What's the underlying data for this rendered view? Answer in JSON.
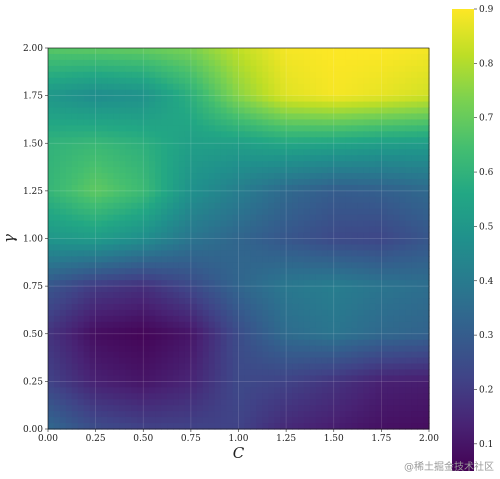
{
  "chart_data": {
    "type": "heatmap",
    "title": "",
    "xlabel": "C",
    "ylabel": "γ",
    "xlim": [
      0.0,
      2.0
    ],
    "ylim": [
      0.0,
      2.0
    ],
    "x_ticks": [
      "0.00",
      "0.25",
      "0.50",
      "0.75",
      "1.00",
      "1.25",
      "1.50",
      "1.75",
      "2.00"
    ],
    "y_ticks": [
      "0.00",
      "0.25",
      "0.50",
      "0.75",
      "1.00",
      "1.25",
      "1.50",
      "1.75",
      "2.00"
    ],
    "colorbar": {
      "colormap": "viridis",
      "range": [
        0.05,
        0.9
      ],
      "ticks": [
        "0.1",
        "0.2",
        "0.3",
        "0.4",
        "0.5",
        "0.6",
        "0.7",
        "0.8",
        "0.9"
      ]
    },
    "x": [
      0.0,
      0.25,
      0.5,
      0.75,
      1.0,
      1.25,
      1.5,
      1.75,
      2.0
    ],
    "y": [
      0.0,
      0.25,
      0.5,
      0.75,
      1.0,
      1.25,
      1.5,
      1.75,
      2.0
    ],
    "z": [
      [
        0.34,
        0.25,
        0.22,
        0.22,
        0.22,
        0.15,
        0.12,
        0.09,
        0.08
      ],
      [
        0.22,
        0.13,
        0.1,
        0.14,
        0.24,
        0.22,
        0.18,
        0.13,
        0.12
      ],
      [
        0.18,
        0.08,
        0.06,
        0.1,
        0.25,
        0.35,
        0.38,
        0.34,
        0.32
      ],
      [
        0.28,
        0.2,
        0.17,
        0.24,
        0.33,
        0.39,
        0.41,
        0.38,
        0.36
      ],
      [
        0.5,
        0.52,
        0.47,
        0.38,
        0.33,
        0.28,
        0.24,
        0.23,
        0.28
      ],
      [
        0.61,
        0.69,
        0.63,
        0.48,
        0.41,
        0.34,
        0.3,
        0.31,
        0.34
      ],
      [
        0.6,
        0.62,
        0.59,
        0.53,
        0.53,
        0.56,
        0.55,
        0.53,
        0.52
      ],
      [
        0.5,
        0.46,
        0.48,
        0.59,
        0.75,
        0.86,
        0.89,
        0.87,
        0.84
      ],
      [
        0.68,
        0.69,
        0.7,
        0.73,
        0.82,
        0.89,
        0.9,
        0.9,
        0.89
      ]
    ],
    "grid": true
  },
  "watermark": "@稀土掘金技术社区"
}
